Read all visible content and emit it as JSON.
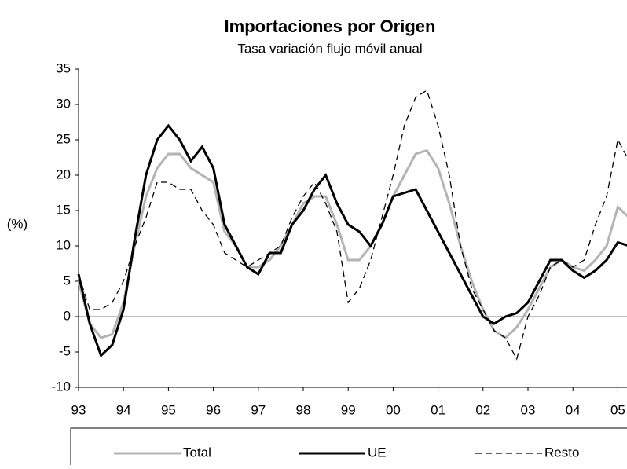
{
  "chart_data": {
    "type": "line",
    "title": "Importaciones por Origen",
    "subtitle": "Tasa variación flujo móvil anual",
    "y_label": "(%)",
    "categories": [
      "93",
      null,
      null,
      null,
      "94",
      null,
      null,
      null,
      "95",
      null,
      null,
      null,
      "96",
      null,
      null,
      null,
      "97",
      null,
      null,
      null,
      "98",
      null,
      null,
      null,
      "99",
      null,
      null,
      null,
      "00",
      null,
      null,
      null,
      "01",
      null,
      null,
      null,
      "02",
      null,
      null,
      null,
      "03",
      null,
      null,
      null,
      "04",
      null,
      null,
      null,
      "05",
      null
    ],
    "series": [
      {
        "name": "Total",
        "color": "#b3b3b3",
        "dash": "solid",
        "values": [
          5,
          -1,
          -3,
          -2.5,
          2,
          10,
          17,
          21,
          23,
          23,
          21,
          20,
          19,
          12,
          10,
          7,
          7,
          8,
          10,
          13,
          16,
          17,
          17,
          13,
          8,
          8,
          10,
          13,
          17,
          20,
          23,
          23.5,
          21,
          16,
          10,
          5,
          1,
          -2,
          -3,
          -1.5,
          1,
          4,
          7,
          8,
          7,
          6.5,
          8,
          10,
          15.5,
          14
        ]
      },
      {
        "name": "UE",
        "color": "#000000",
        "dash": "solid",
        "values": [
          6,
          -1,
          -5.5,
          -4,
          1,
          11,
          20,
          25,
          27,
          25,
          22,
          24,
          21,
          13,
          10,
          7,
          6,
          9,
          9,
          13,
          15,
          18,
          20,
          16,
          13,
          12,
          10,
          13,
          17,
          17.5,
          18,
          15,
          12,
          9,
          6,
          3,
          0,
          -1,
          0,
          0.5,
          2,
          5,
          8,
          8,
          6.5,
          5.5,
          6.5,
          8,
          10.5,
          10
        ]
      },
      {
        "name": "Resto",
        "color": "#000000",
        "dash": "dashed",
        "values": [
          6,
          1,
          1,
          2,
          5,
          10,
          14,
          19,
          19,
          18,
          18,
          15,
          13,
          9,
          8,
          7,
          8,
          9,
          10,
          14,
          17,
          19,
          16,
          12,
          2,
          4,
          8,
          14,
          20,
          27,
          31,
          32,
          27,
          20,
          10,
          4,
          1,
          -2,
          -3,
          -6,
          0,
          3,
          7,
          8,
          7,
          8,
          13,
          17,
          25,
          22
        ]
      }
    ],
    "ylim": [
      -10,
      35
    ],
    "yticks": [
      -10,
      -5,
      0,
      5,
      10,
      15,
      20,
      25,
      30,
      35
    ]
  }
}
